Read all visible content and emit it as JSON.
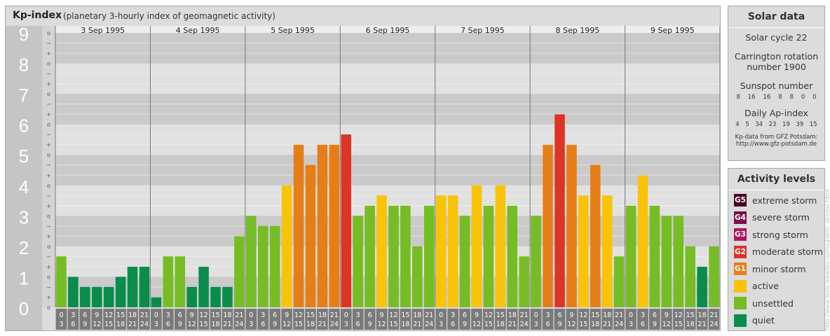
{
  "header": {
    "title": "Kp-index",
    "subtitle": "(planetary 3-hourly index of geomagnetic activity)"
  },
  "colors": {
    "quiet": "#0a8c4c",
    "unsettled": "#76bc24",
    "active": "#f9c308",
    "minor_storm": "#e67e17",
    "moderate_storm": "#dd3426",
    "strong_storm": "#b01461",
    "severe_storm": "#7d0f4c",
    "extreme_storm": "#4a0025"
  },
  "chart_data": {
    "type": "bar",
    "title": "Kp-index",
    "ylim": [
      0,
      9
    ],
    "y_ticks": [
      "0",
      "1",
      "2",
      "3",
      "4",
      "5",
      "6",
      "7",
      "8",
      "9"
    ],
    "sub_ticks": [
      "o",
      "+",
      "−",
      "o",
      "+",
      "−",
      "o",
      "+",
      "−",
      "o",
      "+",
      "−",
      "o",
      "+",
      "−",
      "o",
      "+",
      "−",
      "o",
      "+",
      "−",
      "o",
      "+",
      "−",
      "o",
      "+",
      "−",
      "o"
    ],
    "dates": [
      "3 Sep 1995",
      "4 Sep 1995",
      "5 Sep 1995",
      "6 Sep 1995",
      "7 Sep 1995",
      "8 Sep 1995",
      "9 Sep 1995"
    ],
    "hour_start_labels": [
      "0",
      "3",
      "6",
      "9",
      "12",
      "15",
      "18",
      "21"
    ],
    "hour_end_labels": [
      "3",
      "6",
      "9",
      "12",
      "15",
      "18",
      "21",
      "24"
    ],
    "values": [
      [
        1.67,
        1.0,
        0.67,
        0.67,
        0.67,
        1.0,
        1.33,
        1.33
      ],
      [
        0.33,
        1.67,
        1.67,
        0.67,
        1.33,
        0.67,
        0.67,
        2.33
      ],
      [
        3.0,
        2.67,
        2.67,
        4.0,
        5.33,
        4.67,
        5.33,
        5.33
      ],
      [
        5.67,
        3.0,
        3.33,
        3.67,
        3.33,
        3.33,
        2.0,
        3.33
      ],
      [
        3.67,
        3.67,
        3.0,
        4.0,
        3.33,
        4.0,
        3.33,
        1.67
      ],
      [
        3.0,
        5.33,
        6.33,
        5.33,
        3.67,
        4.67,
        3.67,
        1.67
      ],
      [
        3.33,
        4.33,
        3.33,
        3.0,
        3.0,
        2.0,
        1.33,
        2.0
      ]
    ]
  },
  "solar": {
    "title": "Solar data",
    "cycle": "Solar cycle 22",
    "carrington_1": "Carrington rotation",
    "carrington_2": "number 1900",
    "sunspot_title": "Sunspot number",
    "sunspot_values": [
      "8",
      "16",
      "16",
      "8",
      "8",
      "0",
      "0"
    ],
    "ap_title": "Daily Ap-index",
    "ap_values": [
      "4",
      "5",
      "34",
      "23",
      "19",
      "39",
      "15"
    ],
    "source_1": "Kp-data from GFZ Potsdam:",
    "source_2": "http://www.gfz-potsdam.de"
  },
  "activity": {
    "title": "Activity levels",
    "items": [
      {
        "badge": "G5",
        "label": "extreme storm",
        "color": "#4a0025"
      },
      {
        "badge": "G4",
        "label": "severe storm",
        "color": "#7d0f4c"
      },
      {
        "badge": "G3",
        "label": "strong storm",
        "color": "#b01461"
      },
      {
        "badge": "G2",
        "label": "moderate storm",
        "color": "#dd3426"
      },
      {
        "badge": "G1",
        "label": "minor storm",
        "color": "#e67e17"
      },
      {
        "badge": "",
        "label": "active",
        "color": "#f9c308"
      },
      {
        "badge": "",
        "label": "unsettled",
        "color": "#76bc24"
      },
      {
        "badge": "",
        "label": "quiet",
        "color": "#0a8c4c"
      }
    ]
  },
  "watermark": "http://www.tesis.lebedev.ru/magnetic_storms.html"
}
